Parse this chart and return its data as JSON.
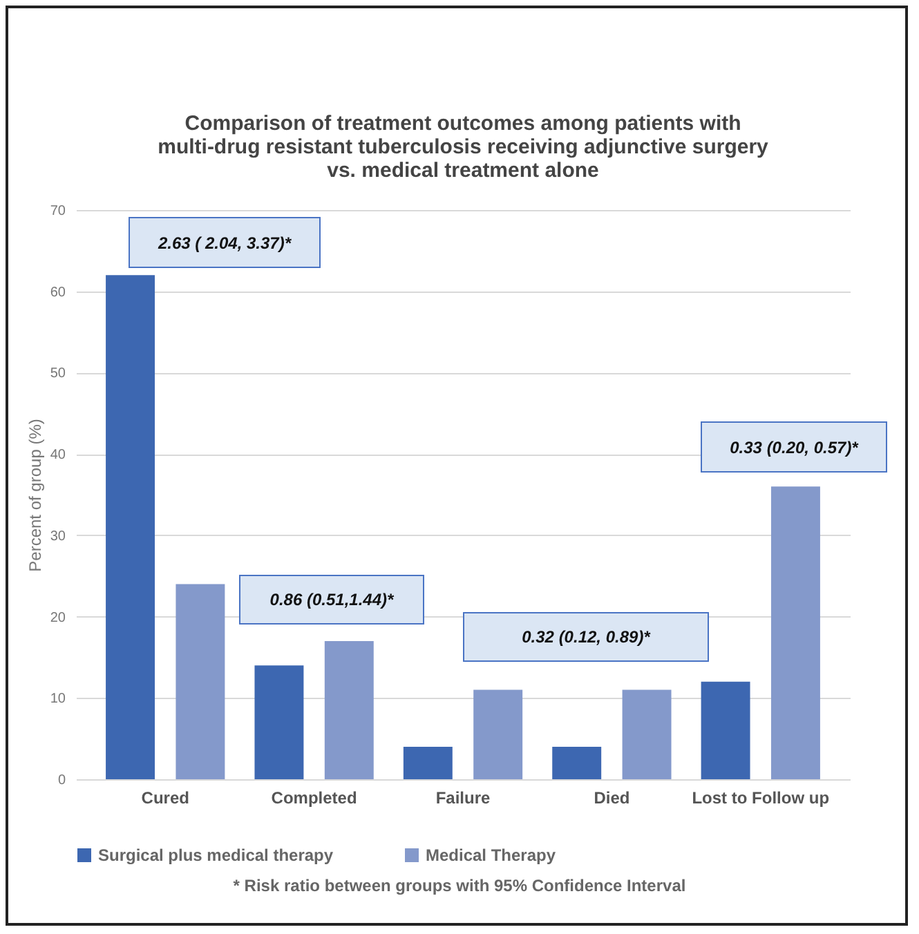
{
  "chart_data": {
    "type": "bar",
    "title": "Comparison of treatment outcomes among patients with multi-drug resistant tuberculosis receiving adjunctive surgery vs. medical treatment alone",
    "ylabel": "Percent of group (%)",
    "categories": [
      "Cured",
      "Completed",
      "Failure",
      "Died",
      "Lost to Follow up"
    ],
    "series": [
      {
        "name": "Surgical plus medical therapy",
        "color": "#3d67b1",
        "values": [
          62,
          14,
          4,
          4,
          12
        ]
      },
      {
        "name": "Medical Therapy",
        "color": "#8499cb",
        "values": [
          24,
          17,
          11,
          11,
          36
        ]
      }
    ],
    "ylim": [
      0,
      70
    ],
    "yticks": [
      0,
      10,
      20,
      30,
      40,
      50,
      60,
      70
    ],
    "grid": "y",
    "legend": "bottom",
    "annotations": [
      "2.63 ( 2.04, 3.37)*",
      "0.86 (0.51,1.44)*",
      "0.32 (0.12, 0.89)*",
      "0.33 (0.20, 0.57)*",
      "* Risk ratio between groups with 95% Confidence Interval"
    ]
  }
}
